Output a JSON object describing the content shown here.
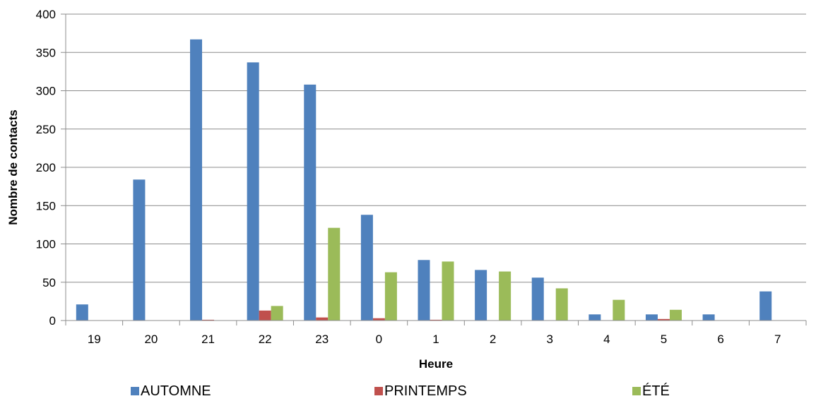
{
  "chart_data": {
    "type": "bar",
    "title": "",
    "xlabel": "Heure",
    "ylabel": "Nombre de contacts",
    "categories": [
      "19",
      "20",
      "21",
      "22",
      "23",
      "0",
      "1",
      "2",
      "3",
      "4",
      "5",
      "6",
      "7"
    ],
    "ylim": [
      0,
      400
    ],
    "yticks": [
      0,
      50,
      100,
      150,
      200,
      250,
      300,
      350,
      400
    ],
    "grid": true,
    "legend_position": "bottom",
    "series": [
      {
        "name": "AUTOMNE",
        "color": "#4F81BD",
        "values": [
          21,
          184,
          367,
          337,
          308,
          138,
          79,
          66,
          56,
          8,
          8,
          8,
          38
        ]
      },
      {
        "name": "PRINTEMPS",
        "color": "#C0504D",
        "values": [
          0,
          0,
          1,
          13,
          4,
          3,
          1,
          0,
          0,
          0,
          2,
          0,
          0
        ]
      },
      {
        "name": "ÉTÉ",
        "color": "#9BBB59",
        "values": [
          0,
          0,
          0,
          19,
          121,
          63,
          77,
          64,
          42,
          27,
          14,
          0,
          0
        ]
      }
    ]
  }
}
